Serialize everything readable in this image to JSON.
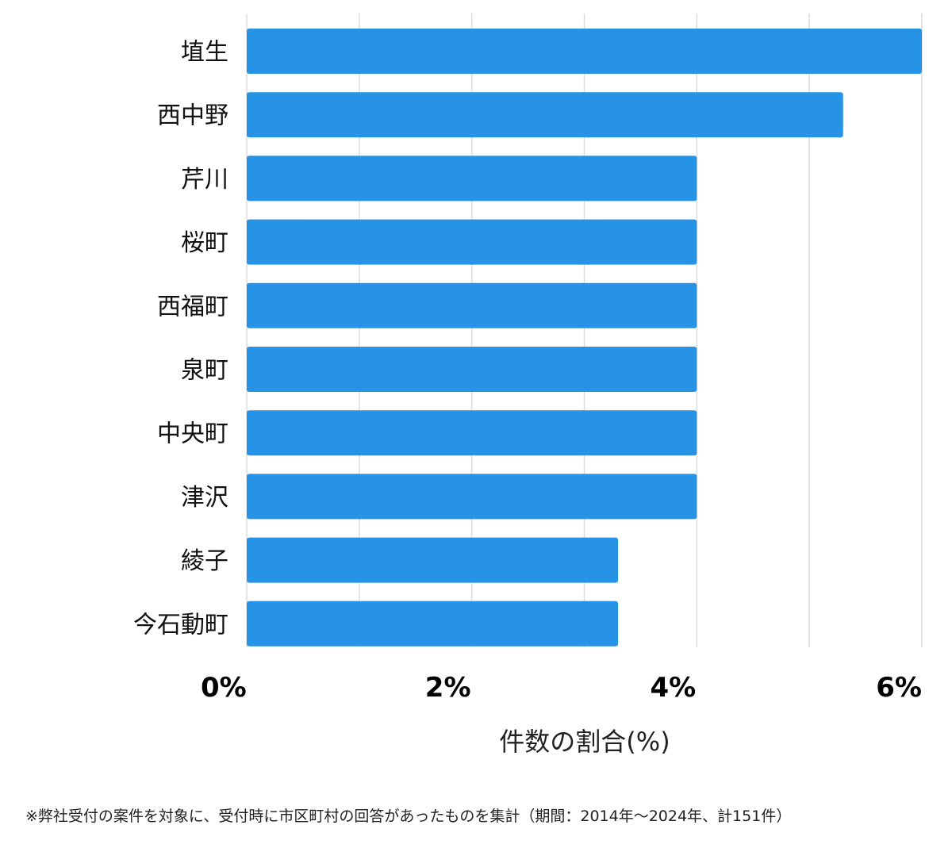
{
  "chart_data": {
    "type": "bar",
    "orientation": "horizontal",
    "categories": [
      "埴生",
      "西中野",
      "芹川",
      "桜町",
      "西福町",
      "泉町",
      "中央町",
      "津沢",
      "綾子",
      "今石動町"
    ],
    "values": [
      6.0,
      5.3,
      4.0,
      4.0,
      4.0,
      4.0,
      4.0,
      4.0,
      3.3,
      3.3
    ],
    "xlim": [
      0,
      6
    ],
    "xticks": [
      0,
      2,
      4,
      6
    ],
    "tick_labels": [
      "0%",
      "2%",
      "4%",
      "6%"
    ],
    "gridlines": [
      0,
      1,
      2,
      3,
      4,
      5,
      6
    ],
    "xlabel": "件数の割合(%)",
    "ylabel": "",
    "title": "",
    "grid": true,
    "bar_color": "#2693e6",
    "grid_color": "#dddddd"
  },
  "footnote": "※弊社受付の案件を対象に、受付時に市区町村の回答があったものを集計（期間：2014年～2024年、計151件）"
}
